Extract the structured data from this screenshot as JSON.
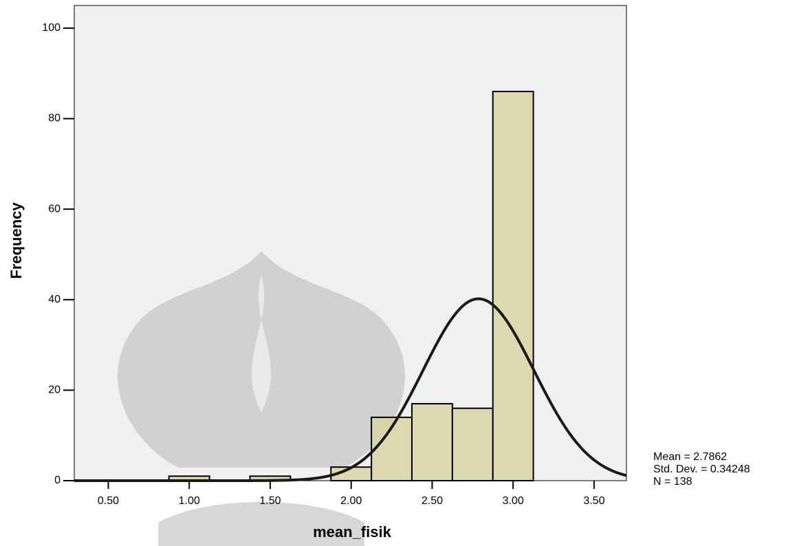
{
  "chart_data": {
    "type": "histogram",
    "x_label": "mean_fisik",
    "y_label": "Frequency",
    "bins": [
      0.875,
      1.125,
      1.375,
      1.625,
      1.875,
      2.125,
      2.375,
      2.625,
      2.875,
      3.125
    ],
    "counts": [
      1,
      0,
      1,
      0,
      3,
      14,
      17,
      16,
      86
    ],
    "color": "#d8d3a3",
    "xlim": [
      0.29,
      3.7
    ],
    "xticks": [
      {
        "value": 0.5,
        "label": "0.50"
      },
      {
        "value": 1,
        "label": "1.00"
      },
      {
        "value": 1.5,
        "label": "1.50"
      },
      {
        "value": 2,
        "label": "2.00"
      },
      {
        "value": 2.5,
        "label": "2.50"
      },
      {
        "value": 3,
        "label": "3.00"
      },
      {
        "value": 3.5,
        "label": "3.50"
      }
    ],
    "ylim": [
      0,
      105
    ],
    "yticks": [
      0,
      20,
      40,
      60,
      80,
      100
    ],
    "normal_curve": {
      "mean": 2.7862,
      "sd": 0.34248,
      "n": 138
    },
    "stats": [
      "Mean = 2.7862",
      "Std. Dev. = 0.34248",
      "N = 138"
    ]
  }
}
